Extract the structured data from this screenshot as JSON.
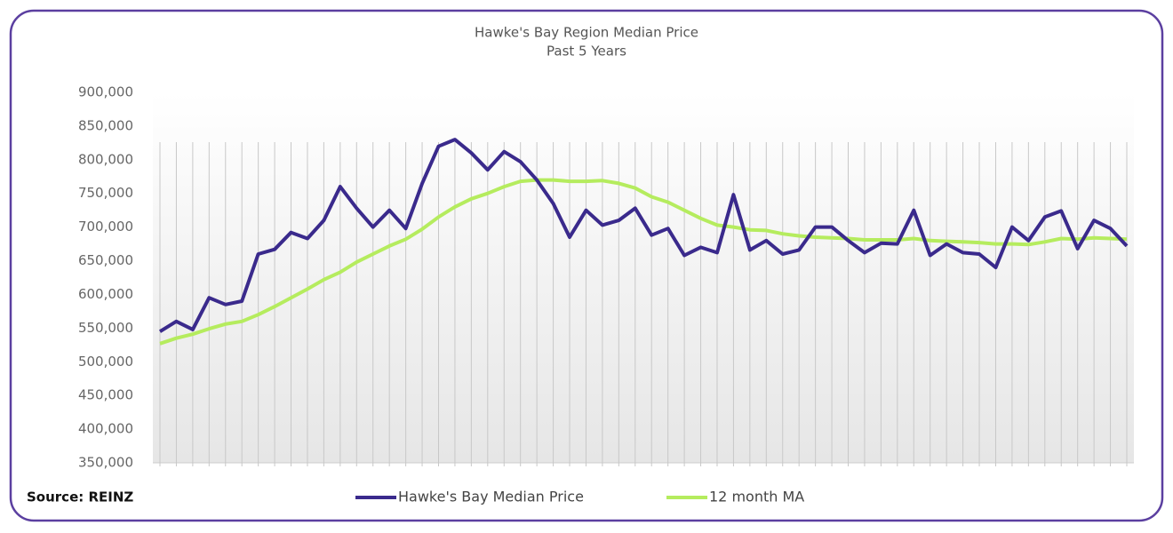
{
  "chart_data": {
    "type": "line",
    "title": "Hawke's Bay Region Median Price",
    "subtitle": "Past 5 Years",
    "source": "Source: REINZ",
    "categories": [
      null,
      null,
      null,
      null,
      null,
      null,
      null,
      null,
      null,
      null,
      null,
      null,
      null,
      null,
      null,
      null,
      null,
      null,
      null,
      null,
      null,
      null,
      null,
      null,
      null,
      null,
      null,
      null,
      null,
      null,
      null,
      null,
      null,
      null,
      null,
      null,
      null,
      null,
      null,
      null,
      null,
      null,
      null,
      null,
      null,
      null,
      null,
      null,
      null,
      null,
      null,
      null,
      null,
      null,
      null,
      null,
      null,
      null,
      null,
      null
    ],
    "series": [
      {
        "name": "Hawke's Bay Median Price",
        "color": "#3a2a8c",
        "values": [
          545000,
          560000,
          548000,
          595000,
          585000,
          590000,
          660000,
          667000,
          692000,
          683000,
          710000,
          760000,
          728000,
          700000,
          725000,
          698000,
          765000,
          820000,
          830000,
          810000,
          785000,
          812000,
          797000,
          770000,
          735000,
          685000,
          725000,
          703000,
          710000,
          728000,
          688000,
          698000,
          658000,
          670000,
          662000,
          748000,
          666000,
          680000,
          660000,
          666000,
          700000,
          700000,
          680000,
          662000,
          676000,
          675000,
          725000,
          658000,
          675000,
          662000,
          660000,
          640000,
          700000,
          680000,
          715000,
          724000,
          668000,
          710000,
          698000,
          672000
        ]
      },
      {
        "name": "12 month MA",
        "color": "#b5ec5e",
        "values": [
          527000,
          535000,
          541000,
          549000,
          556000,
          560000,
          570000,
          582000,
          595000,
          608000,
          622000,
          633000,
          648000,
          660000,
          672000,
          682000,
          697000,
          715000,
          730000,
          742000,
          750000,
          760000,
          768000,
          770000,
          770000,
          768000,
          768000,
          769000,
          765000,
          758000,
          745000,
          737000,
          725000,
          713000,
          703000,
          700000,
          696000,
          695000,
          690000,
          687000,
          685000,
          684000,
          683000,
          681000,
          681000,
          681000,
          683000,
          680000,
          679000,
          678000,
          677000,
          675000,
          675000,
          674000,
          678000,
          683000,
          682000,
          684000,
          683000,
          682000
        ]
      }
    ],
    "ylim": [
      350000,
      900000
    ],
    "yticks": [
      {
        "value": 350000,
        "label": "350,000"
      },
      {
        "value": 400000,
        "label": "400,000"
      },
      {
        "value": 450000,
        "label": "450,000"
      },
      {
        "value": 500000,
        "label": "500,000"
      },
      {
        "value": 550000,
        "label": "550,000"
      },
      {
        "value": 600000,
        "label": "600,000"
      },
      {
        "value": 650000,
        "label": "650,000"
      },
      {
        "value": 700000,
        "label": "700,000"
      },
      {
        "value": 750000,
        "label": "750,000"
      },
      {
        "value": 800000,
        "label": "800,000"
      },
      {
        "value": 850000,
        "label": "850,000"
      },
      {
        "value": 900000,
        "label": "900,000"
      }
    ],
    "legend": "bottom"
  }
}
